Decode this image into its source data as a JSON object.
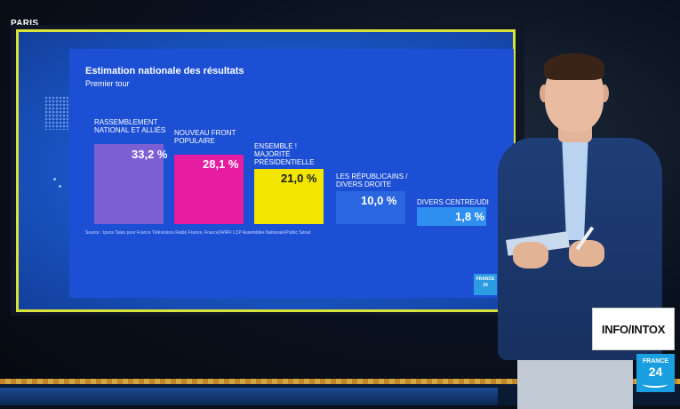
{
  "broadcast": {
    "location": "PARIS"
  },
  "graphic": {
    "title": "Estimation nationale des résultats",
    "subtitle": "Premier tour",
    "source": "Source : Ipsos Talan pour France Télévisions Radio France, France24/RFI LCP Assemblée Nationale/Public Sénat",
    "bars": [
      {
        "label": "RASSEMBLEMENT NATIONAL ET ALLIÉS",
        "value": "33,2 %",
        "pct": 33.2,
        "color": "#7b5fd3"
      },
      {
        "label": "NOUVEAU FRONT POPULAIRE",
        "value": "28,1 %",
        "pct": 28.1,
        "color": "#e61da0"
      },
      {
        "label": "ENSEMBLE ! MAJORITÉ PRÉSIDENTIELLE",
        "value": "21,0 %",
        "pct": 21.0,
        "color": "#f2e600"
      },
      {
        "label": "LES RÉPUBLICAINS / DIVERS DROITE",
        "value": "10,0 %",
        "pct": 10.0,
        "color": "#2a66e0"
      },
      {
        "label": "DIVERS CENTRE/UDI",
        "value": "1,8 %",
        "pct": 1.8,
        "color": "#2f8ff0"
      }
    ],
    "watermark_logo": "FRANCE 24"
  },
  "branding": {
    "segment": "INFO/INTOX",
    "channel_line1": "FRANCE",
    "channel_line2": "24"
  },
  "colors": {
    "screen_blue": "#1c4fd4",
    "frame_yellow": "#d8e33a",
    "france24_blue": "#1a9fe0"
  }
}
